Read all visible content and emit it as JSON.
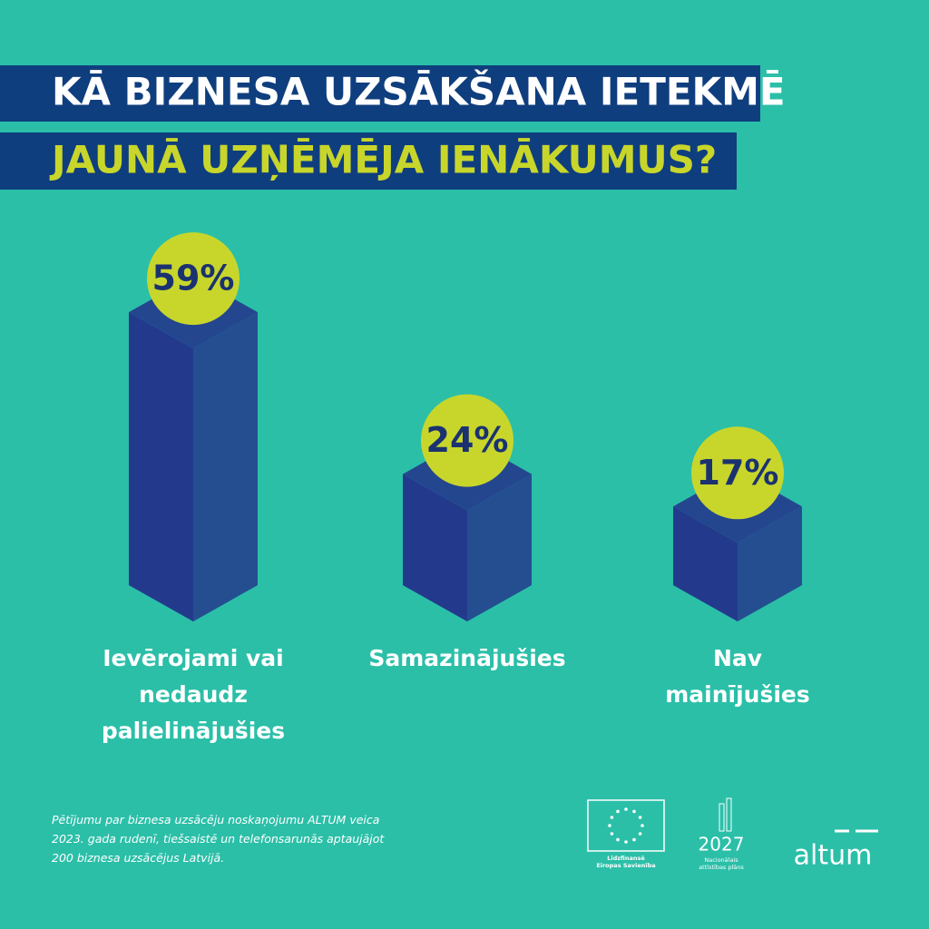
{
  "chart_data": {
    "type": "bar3d",
    "title": [
      "KĀ BIZNESA UZSĀKŠANA IETEKMĒ",
      "JAUNĀ UZŅĒMĒJA IENĀKUMUS?"
    ],
    "categories": [
      "Ievērojami vai\nnedaudz\npalielinājušies",
      "Samazinājušies",
      "Nav\nmainījušies"
    ],
    "values": [
      59,
      24,
      17
    ],
    "value_labels": [
      "59%",
      "24%",
      "17%"
    ],
    "color": "#233a8c",
    "label_color": "#c8d62b"
  },
  "footnote": "Pētījumu par biznesa uzsācēju noskaņojumu ALTUM veica\n2023. gada rudenī, tiešsaistē un telefonsarunās aptaujājot\n200 biznesa uzsācējus Latvijā.",
  "logos": {
    "eu": "Līdzfinansē\nEiropas Savienība",
    "nap_year": "2027",
    "nap": "Nacionālais\nattīstības plāns",
    "brand": "altum"
  }
}
